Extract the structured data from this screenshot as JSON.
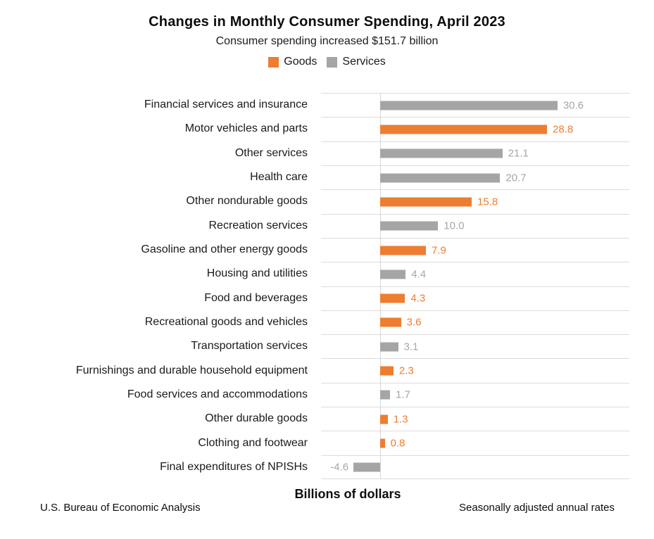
{
  "header": {
    "title": "Changes in Monthly Consumer Spending, April 2023",
    "subtitle": "Consumer spending increased $151.7 billion"
  },
  "legend": {
    "items": [
      {
        "label": "Goods",
        "color": "#ED7D31"
      },
      {
        "label": "Services",
        "color": "#A5A5A5"
      }
    ]
  },
  "footer": {
    "xaxis_label": "Billions of dollars",
    "source_left": "U.S. Bureau of Economic Analysis",
    "note_right": "Seasonally adjusted annual rates"
  },
  "chart_data": {
    "type": "bar",
    "orientation": "horizontal",
    "title": "Changes in Monthly Consumer Spending, April 2023",
    "subtitle": "Consumer spending increased $151.7 billion",
    "xlabel": "Billions of dollars",
    "xlim": [
      -10.2,
      43
    ],
    "grid": "row-dividers-on",
    "legend_position": "top-center",
    "series_colors": {
      "Goods": "#ED7D31",
      "Services": "#A5A5A5"
    },
    "value_label_colors": {
      "Goods": "#ED7D31",
      "Services": "#A6A6A6"
    },
    "bars": [
      {
        "category": "Financial services and insurance",
        "value": 30.6,
        "label": "30.6",
        "series": "Services"
      },
      {
        "category": "Motor vehicles and parts",
        "value": 28.8,
        "label": "28.8",
        "series": "Goods"
      },
      {
        "category": "Other services",
        "value": 21.1,
        "label": "21.1",
        "series": "Services"
      },
      {
        "category": "Health care",
        "value": 20.7,
        "label": "20.7",
        "series": "Services"
      },
      {
        "category": "Other nondurable goods",
        "value": 15.8,
        "label": "15.8",
        "series": "Goods"
      },
      {
        "category": "Recreation services",
        "value": 10.0,
        "label": "10.0",
        "series": "Services"
      },
      {
        "category": "Gasoline and other energy goods",
        "value": 7.9,
        "label": "7.9",
        "series": "Goods"
      },
      {
        "category": "Housing and utilities",
        "value": 4.4,
        "label": "4.4",
        "series": "Services"
      },
      {
        "category": "Food and beverages",
        "value": 4.3,
        "label": "4.3",
        "series": "Goods"
      },
      {
        "category": "Recreational goods and vehicles",
        "value": 3.6,
        "label": "3.6",
        "series": "Goods"
      },
      {
        "category": "Transportation services",
        "value": 3.1,
        "label": "3.1",
        "series": "Services"
      },
      {
        "category": "Furnishings and durable household equipment",
        "value": 2.3,
        "label": "2.3",
        "series": "Goods"
      },
      {
        "category": "Food services and accommodations",
        "value": 1.7,
        "label": "1.7",
        "series": "Services"
      },
      {
        "category": "Other durable goods",
        "value": 1.3,
        "label": "1.3",
        "series": "Goods"
      },
      {
        "category": "Clothing and footwear",
        "value": 0.8,
        "label": "0.8",
        "series": "Goods"
      },
      {
        "category": "Final expenditures of NPISHs",
        "value": -4.6,
        "label": "-4.6",
        "series": "Services"
      }
    ]
  }
}
